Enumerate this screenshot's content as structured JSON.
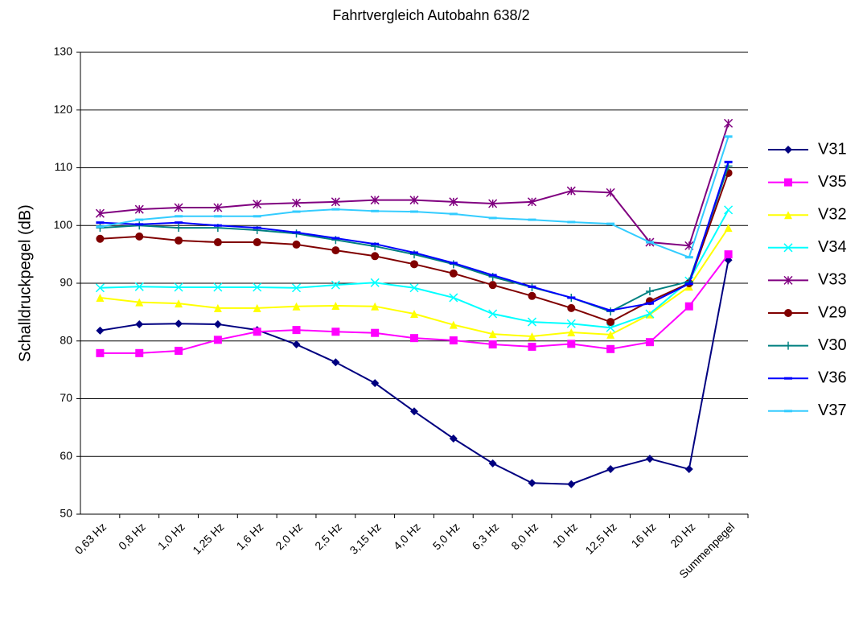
{
  "chart_data": {
    "type": "line",
    "title": "Fahrtvergleich Autobahn 638/2",
    "y_label": "Schalldruckpegel (dB)",
    "categories": [
      "0,63 Hz",
      "0,8 Hz",
      "1,0 Hz",
      "1,25 Hz",
      "1,6 Hz",
      "2,0 Hz",
      "2,5 Hz",
      "3,15 Hz",
      "4,0 Hz",
      "5,0 Hz",
      "6,3 Hz",
      "8,0 Hz",
      "10 Hz",
      "12,5 Hz",
      "16 Hz",
      "20 Hz",
      "Summenpegel"
    ],
    "ylim": [
      50,
      130
    ],
    "yticks": [
      50,
      60,
      70,
      80,
      90,
      100,
      110,
      120,
      130
    ],
    "grid": true,
    "legend": "right",
    "series": [
      {
        "name": "V31",
        "color": "#000080",
        "marker": "diamond",
        "values": [
          81.8,
          82.9,
          83.0,
          82.9,
          81.9,
          79.4,
          76.3,
          72.7,
          67.8,
          63.1,
          58.8,
          55.4,
          55.2,
          57.8,
          59.6,
          57.8,
          94.0
        ]
      },
      {
        "name": "V35",
        "color": "#ff00ff",
        "marker": "square",
        "values": [
          77.9,
          77.9,
          78.3,
          80.2,
          81.6,
          81.9,
          81.6,
          81.4,
          80.5,
          80.1,
          79.4,
          79.0,
          79.5,
          78.6,
          79.8,
          86.0,
          95.0
        ]
      },
      {
        "name": "V32",
        "color": "#ffff00",
        "marker": "triangle",
        "values": [
          87.5,
          86.7,
          86.5,
          85.7,
          85.7,
          86.0,
          86.1,
          86.0,
          84.7,
          82.8,
          81.2,
          80.8,
          81.5,
          81.1,
          84.6,
          89.4,
          99.6
        ]
      },
      {
        "name": "V34",
        "color": "#00ffff",
        "marker": "x",
        "values": [
          89.2,
          89.4,
          89.3,
          89.3,
          89.3,
          89.2,
          89.7,
          90.1,
          89.2,
          87.5,
          84.7,
          83.3,
          83.0,
          82.3,
          84.7,
          90.4,
          102.7
        ]
      },
      {
        "name": "V33",
        "color": "#800080",
        "marker": "star",
        "values": [
          102.1,
          102.8,
          103.1,
          103.1,
          103.7,
          103.9,
          104.1,
          104.4,
          104.4,
          104.1,
          103.8,
          104.1,
          106.0,
          105.7,
          97.1,
          96.5,
          117.7
        ]
      },
      {
        "name": "V29",
        "color": "#800000",
        "marker": "circle",
        "values": [
          97.7,
          98.1,
          97.4,
          97.1,
          97.1,
          96.7,
          95.7,
          94.7,
          93.3,
          91.7,
          89.7,
          87.8,
          85.7,
          83.3,
          86.9,
          90.0,
          109.1
        ]
      },
      {
        "name": "V30",
        "color": "#008080",
        "marker": "plus",
        "values": [
          99.6,
          100.0,
          99.6,
          99.6,
          99.2,
          98.6,
          97.5,
          96.4,
          95.0,
          93.3,
          91.1,
          89.3,
          87.5,
          85.1,
          88.6,
          90.3,
          110.3
        ]
      },
      {
        "name": "V36",
        "color": "#0000ff",
        "marker": "dash",
        "values": [
          100.5,
          100.2,
          100.5,
          100.0,
          99.6,
          98.8,
          97.8,
          96.8,
          95.3,
          93.5,
          91.4,
          89.4,
          87.5,
          85.3,
          86.5,
          89.9,
          111.0
        ]
      },
      {
        "name": "V37",
        "color": "#33ccff",
        "marker": "dash",
        "values": [
          99.8,
          101.0,
          101.6,
          101.6,
          101.6,
          102.4,
          102.8,
          102.5,
          102.4,
          102.0,
          101.3,
          101.0,
          100.6,
          100.3,
          97.1,
          94.5,
          115.4
        ]
      }
    ]
  }
}
